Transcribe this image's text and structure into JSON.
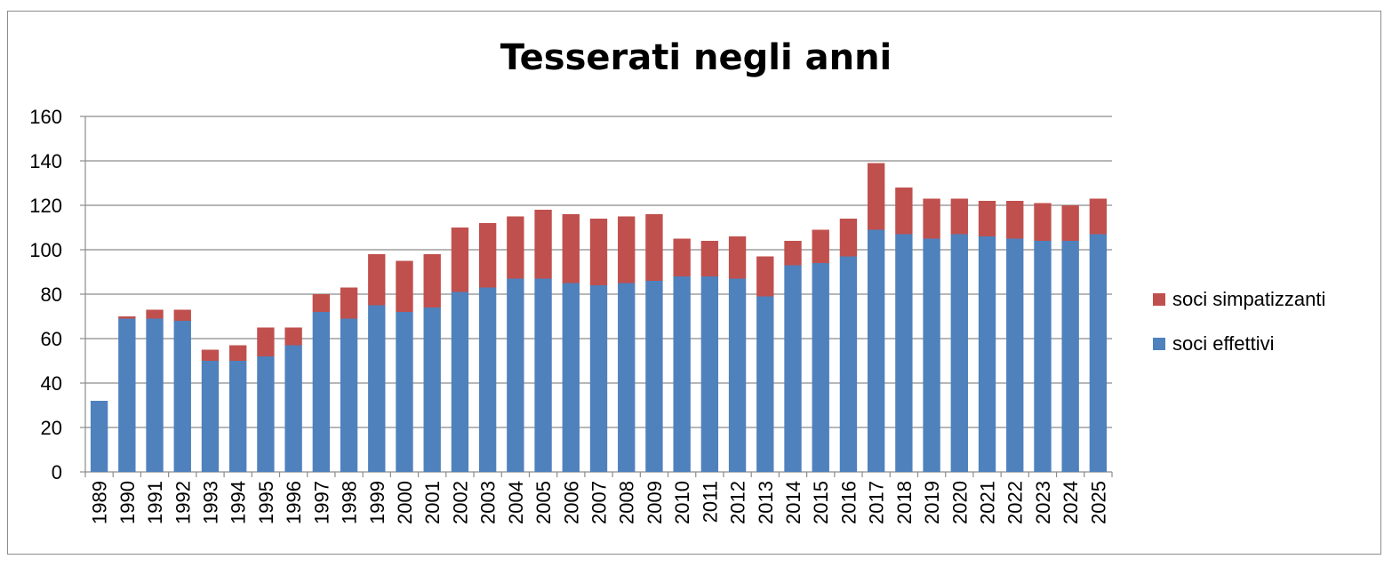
{
  "chart_data": {
    "type": "bar",
    "stacked": true,
    "title": "Tesserati negli anni",
    "xlabel": "",
    "ylabel": "",
    "ylim": [
      0,
      160
    ],
    "y_ticks": [
      0,
      20,
      40,
      60,
      80,
      100,
      120,
      140,
      160
    ],
    "grid": true,
    "legend_position": "right",
    "categories": [
      "1989",
      "1990",
      "1991",
      "1992",
      "1993",
      "1994",
      "1995",
      "1996",
      "1997",
      "1998",
      "1999",
      "2000",
      "2001",
      "2002",
      "2003",
      "2004",
      "2005",
      "2006",
      "2007",
      "2008",
      "2009",
      "2010",
      "2011",
      "2012",
      "2013",
      "2014",
      "2015",
      "2016",
      "2017",
      "2018",
      "2019",
      "2020",
      "2021",
      "2022",
      "2023",
      "2024",
      "2025"
    ],
    "series": [
      {
        "name": "soci effettivi",
        "color": "#4f81bd",
        "values": [
          32,
          69,
          69,
          68,
          50,
          50,
          52,
          57,
          72,
          69,
          75,
          72,
          74,
          81,
          83,
          87,
          87,
          85,
          84,
          85,
          86,
          88,
          88,
          87,
          79,
          93,
          94,
          97,
          109,
          107,
          105,
          107,
          106,
          105,
          104,
          104,
          107
        ]
      },
      {
        "name": "soci simpatizzanti",
        "color": "#c0504d",
        "values": [
          0,
          1,
          4,
          5,
          5,
          7,
          13,
          8,
          8,
          14,
          23,
          23,
          24,
          29,
          29,
          28,
          31,
          31,
          30,
          30,
          30,
          17,
          16,
          19,
          18,
          11,
          15,
          17,
          30,
          21,
          18,
          16,
          16,
          17,
          17,
          16,
          16
        ]
      }
    ]
  }
}
